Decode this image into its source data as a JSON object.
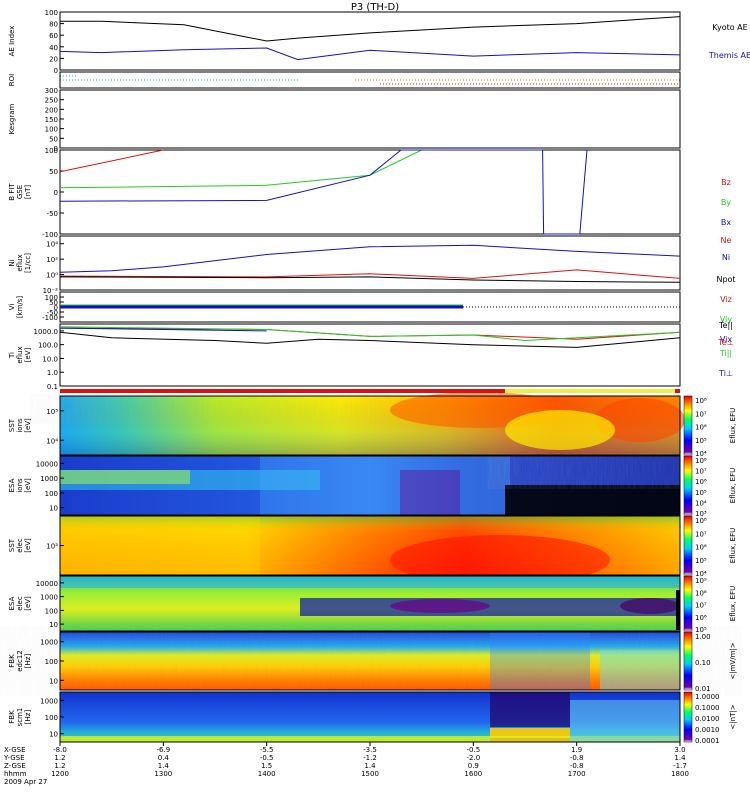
{
  "title": "P3 (TH-D)",
  "colors": {
    "black": "#000000",
    "blue": "#1010cc",
    "red": "#dd1010",
    "green": "#22cc22",
    "cyan": "#00bbbb",
    "orange": "#e07000"
  },
  "chart_data": [
    {
      "type": "line",
      "id": "ae",
      "ylabel": "AE Index",
      "ylim": [
        0,
        100
      ],
      "yticks": [
        0,
        20,
        40,
        60,
        80,
        100
      ],
      "x": [
        1200,
        1240,
        1320,
        1400,
        1430,
        1500,
        1600,
        1700,
        1800
      ],
      "series": [
        {
          "name": "Kyoto AE",
          "color": "#000000",
          "values": [
            84,
            84,
            78,
            50,
            55,
            64,
            74,
            80,
            92
          ]
        },
        {
          "name": "Themis AE",
          "color": "#1010cc",
          "values": [
            32,
            30,
            35,
            38,
            18,
            34,
            24,
            30,
            26
          ]
        }
      ]
    },
    {
      "type": "line",
      "id": "roi",
      "ylabel": "ROI",
      "yticks": []
    },
    {
      "type": "line",
      "id": "kgram",
      "ylabel": "Kesgram",
      "ylim": [
        0,
        300
      ],
      "yticks": [
        0,
        50,
        100,
        150,
        200,
        250,
        300
      ]
    },
    {
      "type": "line",
      "id": "bfit",
      "ylabel": "B FIT\nGSE\n[nT]",
      "ylim": [
        -100,
        100
      ],
      "yticks": [
        -100,
        -50,
        0,
        50,
        100
      ],
      "series": [
        {
          "name": "Bz",
          "color": "#dd1010",
          "points": [
            [
              1200,
              48
            ],
            [
              1300,
              100
            ]
          ]
        },
        {
          "name": "By",
          "color": "#22cc22",
          "points": [
            [
              1200,
              10
            ],
            [
              1400,
              16
            ],
            [
              1500,
              40
            ],
            [
              1550,
              100
            ]
          ]
        },
        {
          "name": "Bx",
          "color": "#1010cc",
          "points": [
            [
              1200,
              -22
            ],
            [
              1400,
              -20
            ],
            [
              1500,
              40
            ],
            [
              1530,
              100
            ],
            [
              1667,
              100
            ],
            [
              1668,
              -100
            ],
            [
              1703,
              -100
            ],
            [
              1710,
              100
            ]
          ]
        }
      ]
    },
    {
      "type": "line",
      "id": "ni",
      "ylabel": "Ni\neflux\n[1/cc]",
      "ylim": [
        -2,
        5
      ],
      "yscale": "log",
      "yticks": [
        {
          "v": -2,
          "label": "10⁻²"
        },
        {
          "v": 0,
          "label": "10⁰"
        },
        {
          "v": 2,
          "label": "10²"
        },
        {
          "v": 4,
          "label": "10⁴"
        }
      ],
      "series": [
        {
          "name": "Ne",
          "color": "#dd1010",
          "points": [
            [
              1200,
              -0.2
            ],
            [
              1400,
              -0.3
            ],
            [
              1500,
              0.1
            ],
            [
              1600,
              -0.5
            ],
            [
              1700,
              0.6
            ],
            [
              1800,
              -0.5
            ]
          ]
        },
        {
          "name": "Ni",
          "color": "#1010cc",
          "points": [
            [
              1200,
              0.3
            ],
            [
              1250,
              0.5
            ],
            [
              1300,
              1.0
            ],
            [
              1400,
              2.6
            ],
            [
              1500,
              3.6
            ],
            [
              1600,
              3.8
            ],
            [
              1700,
              3.0
            ],
            [
              1800,
              2.4
            ]
          ]
        },
        {
          "name": "Npot",
          "color": "#000000",
          "points": [
            [
              1200,
              -0.3
            ],
            [
              1400,
              -0.4
            ],
            [
              1500,
              -0.3
            ],
            [
              1600,
              -0.7
            ],
            [
              1700,
              -0.9
            ],
            [
              1800,
              -1.0
            ]
          ]
        }
      ]
    },
    {
      "type": "line",
      "id": "vi",
      "ylabel": "Vi\n[km/s]",
      "ylim": [
        -150,
        150
      ],
      "yticks": [
        -100,
        -50,
        0,
        50,
        100
      ],
      "x_end": 1590,
      "series": [
        {
          "name": "Viz",
          "color": "#dd1010",
          "values": [
            0
          ]
        },
        {
          "name": "Viy",
          "color": "#22cc22",
          "values": [
            10
          ]
        },
        {
          "name": "Vix",
          "color": "#1010cc",
          "values": [
            0
          ]
        }
      ]
    },
    {
      "type": "line",
      "id": "ti",
      "ylabel": "Ti\neflux\n[eV]",
      "ylim": [
        -1,
        3.5
      ],
      "yscale": "log",
      "yticks": [
        {
          "v": -1,
          "label": "0.1"
        },
        {
          "v": 0,
          "label": "1.0"
        },
        {
          "v": 1,
          "label": "10.0"
        },
        {
          "v": 2,
          "label": "100.0"
        },
        {
          "v": 3,
          "label": "1000.0"
        }
      ],
      "series": [
        {
          "name": "Te||",
          "color": "#000000",
          "points": [
            [
              1200,
              2.9
            ],
            [
              1250,
              2.5
            ],
            [
              1350,
              2.3
            ],
            [
              1400,
              2.1
            ],
            [
              1450,
              2.4
            ],
            [
              1500,
              2.3
            ],
            [
              1600,
              2.0
            ],
            [
              1700,
              1.8
            ],
            [
              1800,
              2.5
            ]
          ]
        },
        {
          "name": "Te⊥",
          "color": "#dd1010",
          "points": [
            [
              1200,
              3.2
            ],
            [
              1400,
              3.1
            ],
            [
              1500,
              2.6
            ],
            [
              1600,
              2.7
            ],
            [
              1700,
              2.4
            ],
            [
              1800,
              2.9
            ]
          ]
        },
        {
          "name": "Ti||",
          "color": "#22cc22",
          "points": [
            [
              1200,
              3.3
            ],
            [
              1400,
              3.1
            ],
            [
              1500,
              2.6
            ],
            [
              1600,
              2.7
            ],
            [
              1650,
              2.3
            ],
            [
              1700,
              2.5
            ],
            [
              1800,
              2.9
            ]
          ]
        },
        {
          "name": "Ti⊥",
          "color": "#1010cc",
          "points": [
            [
              1200,
              3.2
            ],
            [
              1400,
              3.0
            ]
          ]
        }
      ]
    },
    {
      "type": "heatmap",
      "id": "sst_i",
      "ylabel": "SST\nions\n[eV]",
      "yticks": [
        {
          "v": 5,
          "label": "10⁵"
        },
        {
          "v": 4,
          "label": "10⁴"
        }
      ],
      "clabel": "Eflux, EFU",
      "cticks": [
        "10⁸",
        "10⁷",
        "10⁶",
        "10⁵",
        "10⁴"
      ]
    },
    {
      "type": "heatmap",
      "id": "esa_i",
      "ylabel": "ESA\nions\n[eV]",
      "yticks": [
        "10000",
        "1000",
        "100",
        "10"
      ],
      "clabel": "Eflux, EFU",
      "cticks": [
        "10⁸",
        "10⁷",
        "10⁶",
        "10⁵",
        "10⁴",
        "10³"
      ]
    },
    {
      "type": "heatmap",
      "id": "sst_e",
      "ylabel": "SST\nelec\n[eV]",
      "yticks": [
        {
          "v": 5,
          "label": "10⁵"
        }
      ],
      "clabel": "Eflux, EFU",
      "cticks": [
        "10⁸",
        "10⁷",
        "10⁶",
        "10⁵",
        "10⁴"
      ]
    },
    {
      "type": "heatmap",
      "id": "esa_e",
      "ylabel": "ESA\nelec\n[eV]",
      "yticks": [
        "10000",
        "1000",
        "100",
        "10"
      ],
      "clabel": "Eflux, EFU",
      "cticks": [
        "10⁹",
        "10⁸",
        "10⁷",
        "10⁶",
        "10⁵"
      ]
    },
    {
      "type": "heatmap",
      "id": "fbk1",
      "ylabel": "FBK\nedc12\n[Hz]",
      "yticks": [
        "1000",
        "100",
        "10"
      ],
      "clabel": "<|mV/m|>",
      "cticks": [
        "1.00",
        "0.10",
        "0.01"
      ]
    },
    {
      "type": "heatmap",
      "id": "fbk2",
      "ylabel": "FBK\nscm1\n[Hz]",
      "yticks": [
        "1000",
        "100",
        "10"
      ],
      "clabel": "<|nT|>",
      "cticks": [
        "1.0000",
        "0.1000",
        "0.0100",
        "0.0010",
        "0.0001"
      ]
    }
  ],
  "xaxis": {
    "rows": [
      "X-GSE",
      "Y-GSE",
      "Z-GSE",
      "hhmm",
      "2009 Apr 27"
    ],
    "ticks": [
      {
        "t": 1200,
        "vals": [
          "-8.0",
          "1.2",
          "1.2",
          "1200"
        ]
      },
      {
        "t": 1300,
        "vals": [
          "-6.9",
          "0.4",
          "1.4",
          "1300"
        ]
      },
      {
        "t": 1400,
        "vals": [
          "-5.5",
          "-0.5",
          "1.5",
          "1400"
        ]
      },
      {
        "t": 1500,
        "vals": [
          "-3.5",
          "-1.2",
          "1.4",
          "1500"
        ]
      },
      {
        "t": 1600,
        "vals": [
          "-0.5",
          "-2.0",
          "0.9",
          "1600"
        ]
      },
      {
        "t": 1700,
        "vals": [
          "1.9",
          "-0.8",
          "-0.8",
          "1700"
        ]
      },
      {
        "t": 1800,
        "vals": [
          "3.0",
          "1.4",
          "-1.7",
          "1800"
        ]
      }
    ]
  }
}
